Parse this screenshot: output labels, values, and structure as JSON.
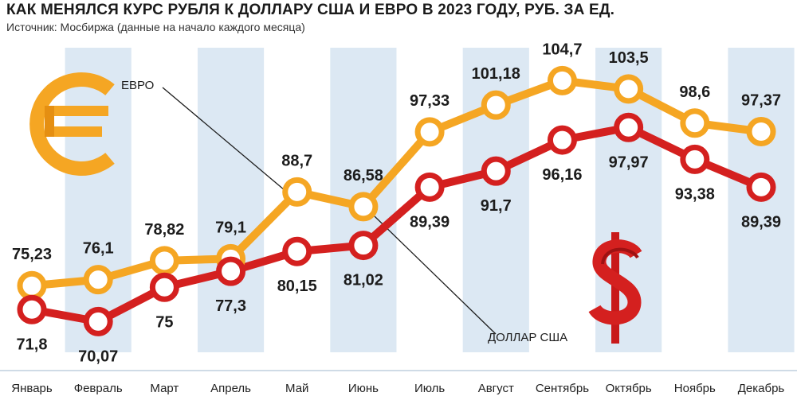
{
  "header": {
    "title": "КАК МЕНЯЛСЯ КУРС РУБЛЯ К ДОЛЛАРУ США И ЕВРО В 2023 ГОДУ, РУБ. ЗА ЕД.",
    "subtitle": "Источник: Мосбиржа (данные на начало каждого месяца)"
  },
  "chart_data": {
    "type": "line",
    "categories": [
      "Январь",
      "Февраль",
      "Март",
      "Апрель",
      "Май",
      "Июнь",
      "Июль",
      "Август",
      "Сентябрь",
      "Октябрь",
      "Ноябрь",
      "Декабрь"
    ],
    "series": [
      {
        "name": "ЕВРО",
        "color": "#f5a623",
        "values": [
          75.23,
          76.1,
          78.82,
          79.1,
          88.7,
          86.58,
          97.33,
          101.18,
          104.7,
          103.5,
          98.6,
          97.37
        ],
        "labels": [
          "75,23",
          "76,1",
          "78,82",
          "79,1",
          "88,7",
          "86,58",
          "97,33",
          "101,18",
          "104,7",
          "103,5",
          "98,6",
          "97,37"
        ]
      },
      {
        "name": "ДОЛЛАР США",
        "color": "#d4201f",
        "values": [
          71.8,
          70.07,
          75,
          77.3,
          80.15,
          81.02,
          89.39,
          91.7,
          96.16,
          97.97,
          93.38,
          89.39
        ],
        "labels": [
          "71,8",
          "70,07",
          "75",
          "77,3",
          "80,15",
          "81,02",
          "89,39",
          "91,7",
          "96,16",
          "97,97",
          "93,38",
          "89,39"
        ]
      }
    ],
    "ylim": [
      66,
      110
    ],
    "grid": false,
    "stripe_color": "#dce8f3",
    "icons": [
      "euro-icon",
      "dollar-icon"
    ]
  }
}
